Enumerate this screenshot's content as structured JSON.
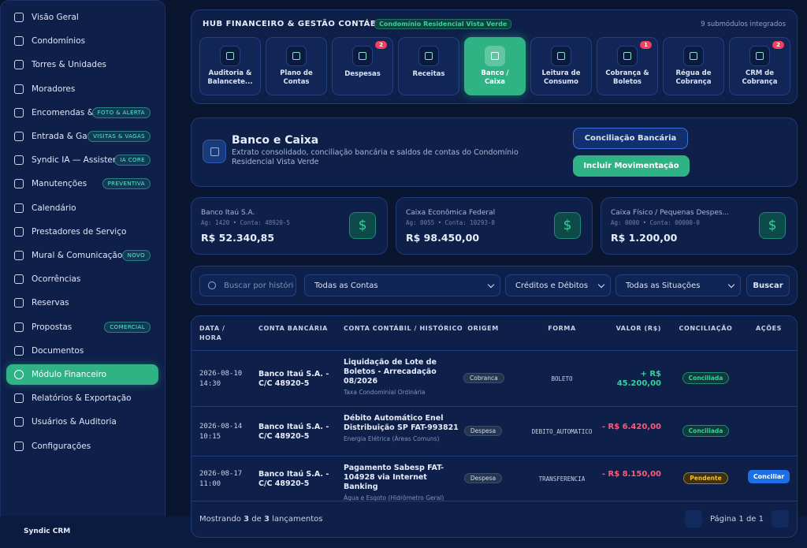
{
  "sidebar": {
    "items": [
      {
        "label": "Visão Geral"
      },
      {
        "label": "Condomínios"
      },
      {
        "label": "Torres & Unidades"
      },
      {
        "label": "Moradores"
      },
      {
        "label": "Encomendas &...",
        "badge": "FOTO & ALERTA"
      },
      {
        "label": "Entrada & Gar...",
        "badge": "VISITAS & VAGAS"
      },
      {
        "label": "Syndic IA — Assistente",
        "badge": "IA CORE"
      },
      {
        "label": "Manutenções",
        "badge": "PREVENTIVA"
      },
      {
        "label": "Calendário"
      },
      {
        "label": "Prestadores de Serviço"
      },
      {
        "label": "Mural & Comunicação",
        "badge": "NOVO"
      },
      {
        "label": "Ocorrências"
      },
      {
        "label": "Reservas"
      },
      {
        "label": "Propostas",
        "badge": "COMERCIAL"
      },
      {
        "label": "Documentos"
      },
      {
        "label": "Módulo Financeiro",
        "active": true
      },
      {
        "label": "Relatórios & Exportação"
      },
      {
        "label": "Usuários & Auditoria"
      },
      {
        "label": "Configurações"
      }
    ],
    "footer": "Syndic CRM"
  },
  "hub": {
    "title": "HUB FINANCEIRO & GESTÃO CONTÁBIL",
    "tag": "Condomínio Residencial Vista Verde",
    "count": "9 submódulos integrados",
    "modules": [
      {
        "label": "Auditoria & Balancete..."
      },
      {
        "label": "Plano de Contas"
      },
      {
        "label": "Despesas",
        "badge": 2
      },
      {
        "label": "Receitas"
      },
      {
        "label": "Banco / Caixa",
        "active": true
      },
      {
        "label": "Leitura de Consumo"
      },
      {
        "label": "Cobrança & Boletos",
        "badge": 1
      },
      {
        "label": "Régua de Cobrança"
      },
      {
        "label": "CRM de Cobrança",
        "badge": 2
      }
    ]
  },
  "page_header": {
    "title": "Banco e Caixa",
    "description": "Extrato consolidado, conciliação bancária e saldos de contas do Condomínio Residencial Vista Verde",
    "buttons": [
      "Conciliação Bancária",
      "Incluir Movimentação"
    ]
  },
  "accounts": [
    {
      "name": "Banco Itaú S.A.",
      "meta": "Ag: 1420 • Conta: 48920-5",
      "balance": "R$ 52.340,85"
    },
    {
      "name": "Caixa Econômica Federal",
      "meta": "Ag: 0055 • Conta: 10293-8",
      "balance": "R$ 98.450,00"
    },
    {
      "name": "Caixa Físico / Pequenas Despes...",
      "meta": "Ag: 0000 • Conta: 00000-0",
      "balance": "R$ 1.200,00"
    }
  ],
  "filters": {
    "search_placeholder": "Buscar por históri",
    "selects": [
      "Todas as Contas",
      "Créditos e Débitos",
      "Todas as Situações"
    ],
    "button": "Buscar"
  },
  "table": {
    "columns": [
      "DATA / HORA",
      "CONTA BANCÁRIA",
      "CONTA CONTÁBIL / HISTÓRICO",
      "ORIGEM",
      "FORMA",
      "VALOR (R$)",
      "CONCILIAÇÃO",
      "AÇÕES"
    ],
    "rows": [
      {
        "date": "2026-08-10 14:30",
        "account": "Banco Itaú S.A. - C/C 48920-5",
        "title": "Liquidação de Lote de Boletos - Arrecadação 08/2026",
        "subtitle": "Taxa Condominial Ordinária",
        "origin": "Cobranca",
        "method": "BOLETO",
        "value": "+ R$ 45.200,00",
        "direction": "credit",
        "status": "Conciliada",
        "status_kind": "ok"
      },
      {
        "date": "2026-08-14 10:15",
        "account": "Banco Itaú S.A. - C/C 48920-5",
        "title": "Débito Automático Enel Distribuição SP FAT-993821",
        "subtitle": "Energia Elétrica (Áreas Comuns)",
        "origin": "Despesa",
        "method": "DEBITO_AUTOMATICO",
        "value": "- R$ 6.420,00",
        "direction": "debit",
        "status": "Conciliada",
        "status_kind": "ok"
      },
      {
        "date": "2026-08-17 11:00",
        "account": "Banco Itaú S.A. - C/C 48920-5",
        "title": "Pagamento Sabesp FAT-104928 via Internet Banking",
        "subtitle": "Água e Esgoto (Hidrômetro Geral)",
        "origin": "Despesa",
        "method": "TRANSFERENCIA",
        "value": "- R$ 8.150,00",
        "direction": "debit",
        "status": "Pendente",
        "status_kind": "pending",
        "action": "Conciliar"
      }
    ]
  },
  "footer": {
    "prefix": "Mostrando",
    "shown": "3",
    "mid": "de",
    "total": "3",
    "suffix": "lançamentos",
    "pagination": "Página 1 de 1"
  }
}
